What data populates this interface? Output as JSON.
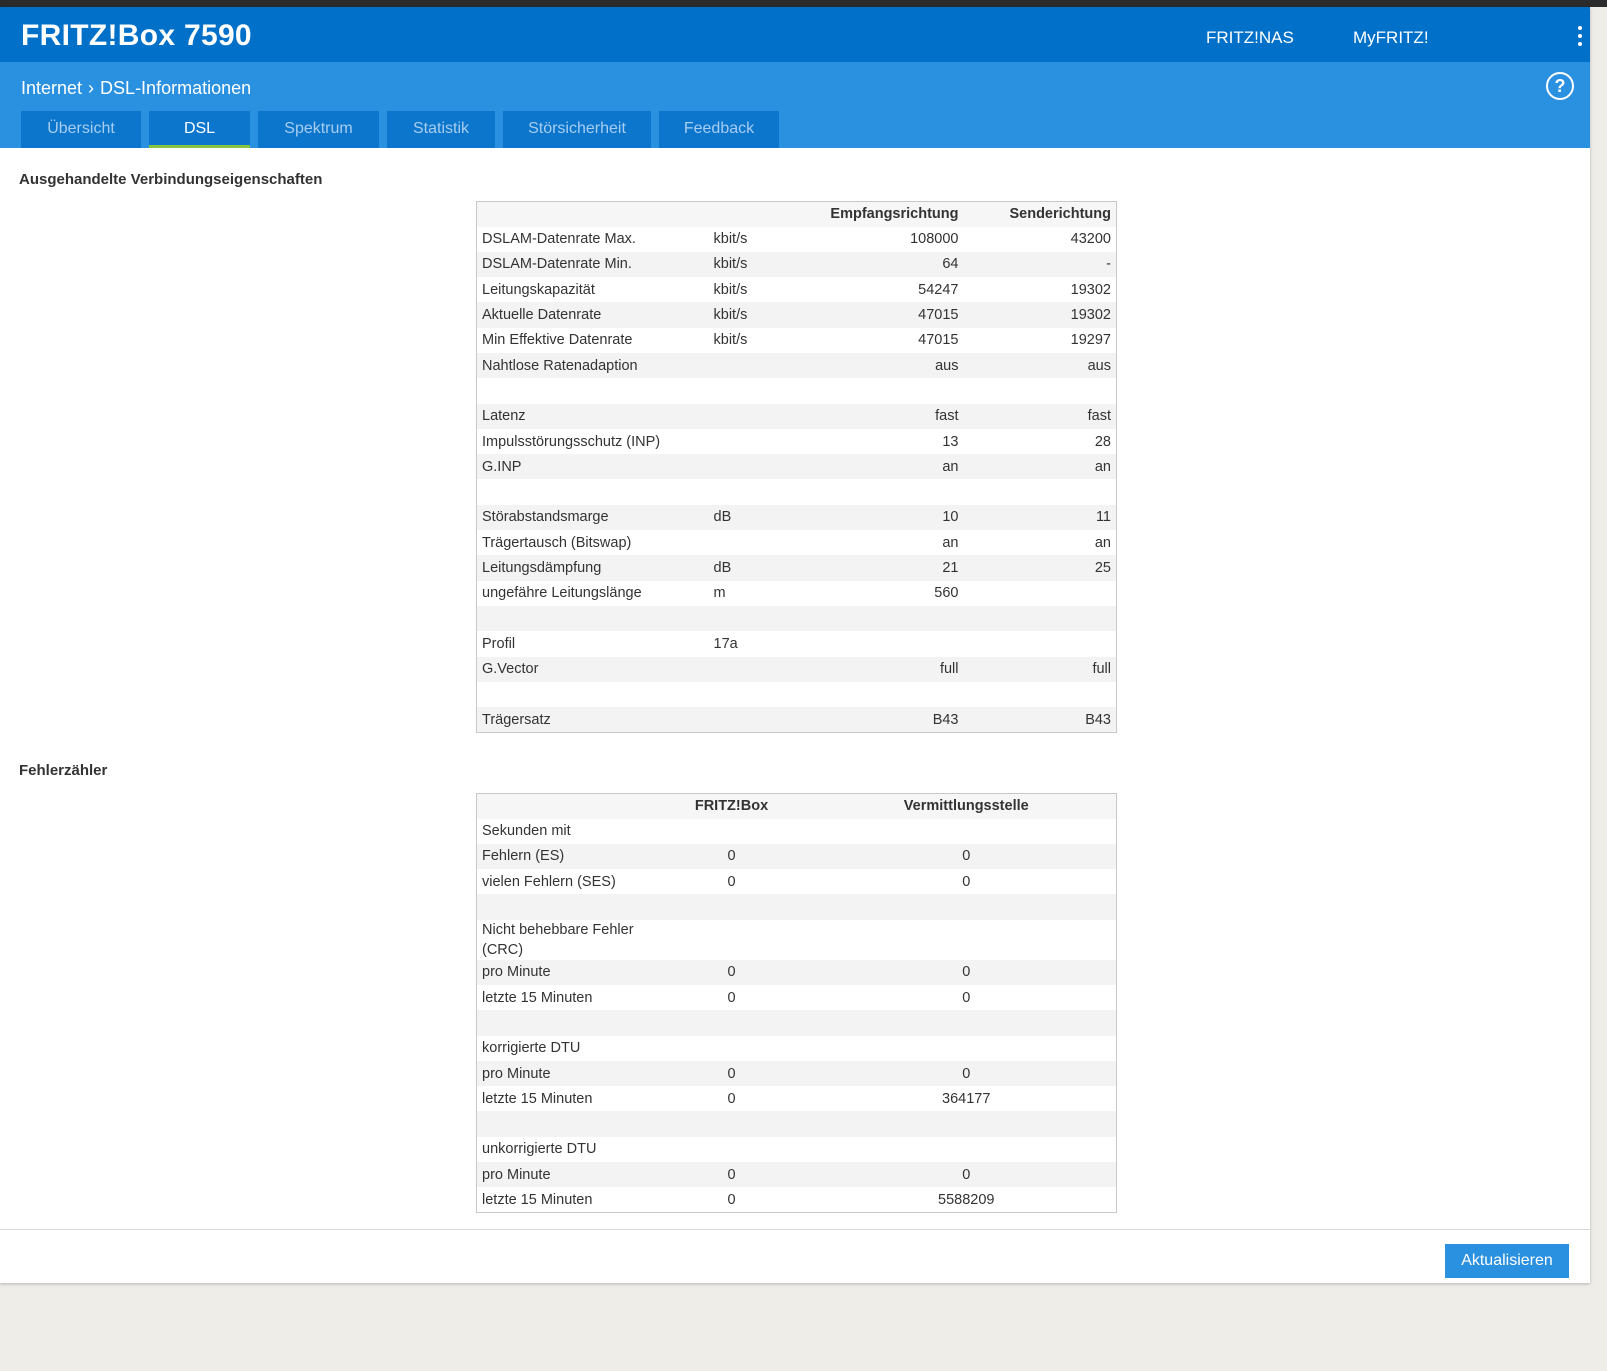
{
  "header": {
    "brand": "FRITZ!Box 7590",
    "links": [
      "FRITZ!NAS",
      "MyFRITZ!"
    ]
  },
  "breadcrumb": {
    "parent": "Internet",
    "current": "DSL-Informationen"
  },
  "help_label": "?",
  "tabs": [
    {
      "label": "Übersicht",
      "active": false
    },
    {
      "label": "DSL",
      "active": true
    },
    {
      "label": "Spektrum",
      "active": false
    },
    {
      "label": "Statistik",
      "active": false
    },
    {
      "label": "Störsicherheit",
      "active": false
    },
    {
      "label": "Feedback",
      "active": false
    }
  ],
  "connection": {
    "title": "Ausgehandelte Verbindungseigenschaften",
    "headers": [
      "",
      "",
      "Empfangsrichtung",
      "Senderichtung"
    ],
    "rows": [
      [
        "DSLAM-Datenrate Max.",
        "kbit/s",
        "108000",
        "43200"
      ],
      [
        "DSLAM-Datenrate Min.",
        "kbit/s",
        "64",
        "-"
      ],
      [
        "Leitungskapazität",
        "kbit/s",
        "54247",
        "19302"
      ],
      [
        "Aktuelle Datenrate",
        "kbit/s",
        "47015",
        "19302"
      ],
      [
        "Min Effektive Datenrate",
        "kbit/s",
        "47015",
        "19297"
      ],
      [
        "Nahtlose Ratenadaption",
        "",
        "aus",
        "aus"
      ],
      [
        "",
        "",
        "",
        ""
      ],
      [
        "Latenz",
        "",
        "fast",
        "fast"
      ],
      [
        "Impulsstörungsschutz (INP)",
        "",
        "13",
        "28"
      ],
      [
        "G.INP",
        "",
        "an",
        "an"
      ],
      [
        "",
        "",
        "",
        ""
      ],
      [
        "Störabstandsmarge",
        "dB",
        "10",
        "11"
      ],
      [
        "Trägertausch (Bitswap)",
        "",
        "an",
        "an"
      ],
      [
        "Leitungsdämpfung",
        "dB",
        "21",
        "25"
      ],
      [
        "ungefähre Leitungslänge",
        "m",
        "560",
        ""
      ],
      [
        "",
        "",
        "",
        ""
      ],
      [
        "Profil",
        "17a",
        "",
        ""
      ],
      [
        "G.Vector",
        "",
        "full",
        "full"
      ],
      [
        "",
        "",
        "",
        ""
      ],
      [
        "Trägersatz",
        "",
        "B43",
        "B43"
      ]
    ]
  },
  "errors": {
    "title": "Fehlerzähler",
    "headers": [
      "",
      "FRITZ!Box",
      "Vermittlungsstelle"
    ],
    "rows": [
      [
        "Sekunden mit",
        "",
        ""
      ],
      [
        "Fehlern (ES)",
        "0",
        "0"
      ],
      [
        "vielen Fehlern (SES)",
        "0",
        "0"
      ],
      [
        "",
        "",
        ""
      ],
      [
        "Nicht behebbare Fehler (CRC)",
        "",
        ""
      ],
      [
        "pro Minute",
        "0",
        "0"
      ],
      [
        "letzte 15 Minuten",
        "0",
        "0"
      ],
      [
        "",
        "",
        ""
      ],
      [
        "korrigierte DTU",
        "",
        ""
      ],
      [
        "pro Minute",
        "0",
        "0"
      ],
      [
        "letzte 15 Minuten",
        "0",
        "364177"
      ],
      [
        "",
        "",
        ""
      ],
      [
        "unkorrigierte DTU",
        "",
        ""
      ],
      [
        "pro Minute",
        "0",
        "0"
      ],
      [
        "letzte 15 Minuten",
        "0",
        "5588209"
      ]
    ]
  },
  "refresh_button": "Aktualisieren",
  "colors": {
    "header": "#0070c8",
    "subheader": "#2a90e0",
    "tab": "#0b76cc",
    "active_tab_underline": "#86c440"
  }
}
